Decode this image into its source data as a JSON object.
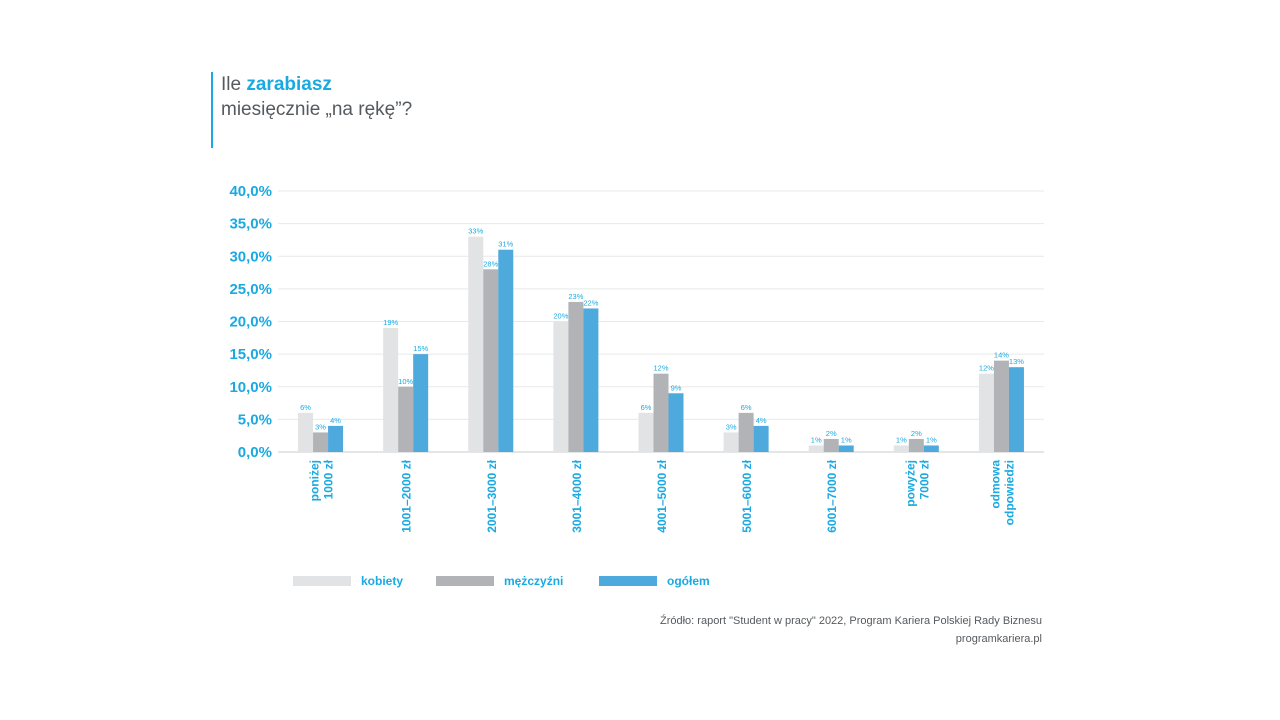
{
  "header": {
    "title_prefix": "Ile ",
    "title_bold": "zarabiasz",
    "title_line2": "miesięcznie „na rękę”?"
  },
  "chart_data": {
    "type": "bar",
    "categories": [
      [
        "poniżej",
        "1000 zł"
      ],
      [
        "1001–2000 zł"
      ],
      [
        "2001–3000 zł"
      ],
      [
        "3001–4000 zł"
      ],
      [
        "4001–5000 zł"
      ],
      [
        "5001–6000 zł"
      ],
      [
        "6001–7000 zł"
      ],
      [
        "powyżej",
        "7000 zł"
      ],
      [
        "odmowa",
        "odpowiedzi"
      ]
    ],
    "series": [
      {
        "name": "kobiety",
        "color": "#e2e3e4",
        "values": [
          6,
          19,
          33,
          20,
          6,
          3,
          1,
          1,
          12
        ],
        "labels": [
          "6%",
          "19%",
          "33%",
          "20%",
          "6%",
          "3%",
          "1%",
          "1%",
          "12%"
        ]
      },
      {
        "name": "mężczyźni",
        "color": "#b1b3b6",
        "values": [
          3,
          10,
          28,
          23,
          12,
          6,
          2,
          2,
          14
        ],
        "labels": [
          "3%",
          "10%",
          "28%",
          "23%",
          "12%",
          "6%",
          "2%",
          "2%",
          "14%"
        ]
      },
      {
        "name": "ogółem",
        "color": "#4eaadc",
        "values": [
          4,
          15,
          31,
          22,
          9,
          4,
          1,
          1,
          13
        ],
        "labels": [
          "4%",
          "15%",
          "31%",
          "22%",
          "9%",
          "4%",
          "1%",
          "1%",
          "13%"
        ]
      }
    ],
    "ylim": [
      0,
      40
    ],
    "yticks": [
      "0,0%",
      "5,0%",
      "10,0%",
      "15,0%",
      "20,0%",
      "25,0%",
      "30,0%",
      "35,0%",
      "40,0%"
    ],
    "grid": true,
    "legend": "bottom",
    "label_color": "#1aa9e1"
  },
  "source": {
    "line1": "Źródło: raport \"Student w pracy\" 2022, Program Kariera Polskiej Rady Biznesu",
    "line2": "programkariera.pl"
  }
}
